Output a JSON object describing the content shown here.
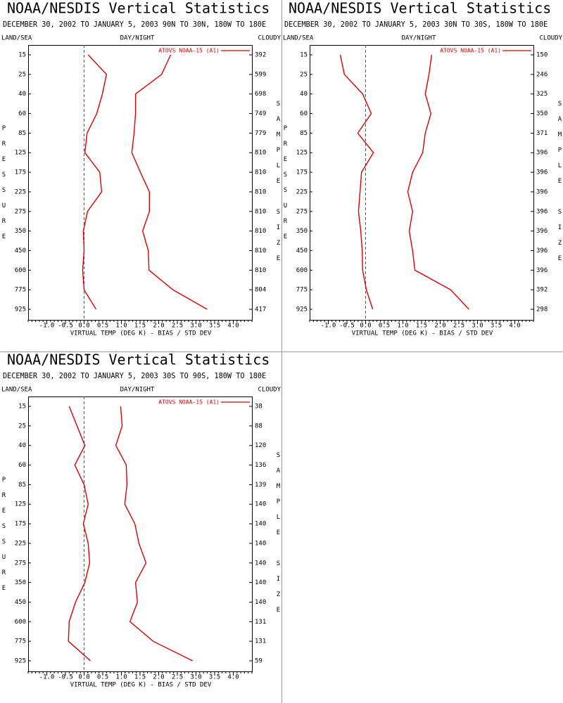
{
  "chart_data": [
    {
      "type": "line",
      "title": "NOAA/NESDIS Vertical Statistics",
      "subtitle": "DECEMBER 30, 2002 TO JANUARY 5, 2003 90N TO 30N, 180W TO 180E",
      "land_sea_label": "LAND/SEA",
      "day_night_label": "DAY/NIGHT",
      "cloudy_label": "CLOUDY",
      "y_label": "PRESSURE",
      "y2_label": "SAMPLE SIZE",
      "x_label": "VIRTUAL TEMP (DEG K) - BIAS / STD DEV",
      "categories": [
        15,
        25,
        40,
        60,
        85,
        125,
        175,
        225,
        275,
        350,
        450,
        600,
        775,
        925
      ],
      "sample_size": [
        392,
        599,
        698,
        749,
        779,
        810,
        810,
        810,
        810,
        810,
        810,
        810,
        804,
        417
      ],
      "series": [
        {
          "name": "ATOVS NOAA-15 (A1)",
          "color": "#dd0000",
          "values": [
            0.11,
            0.6,
            0.49,
            0.34,
            0.08,
            0.02,
            0.42,
            0.47,
            0.09,
            -0.02,
            0,
            -0.04,
            0,
            0.32
          ]
        },
        {
          "color": "#dd0000",
          "values": [
            2.32,
            2.08,
            1.38,
            1.38,
            1.34,
            1.28,
            1.51,
            1.75,
            1.75,
            1.57,
            1.72,
            1.74,
            2.38,
            3.3
          ]
        }
      ],
      "xlim": [
        -1.5,
        4.5
      ],
      "xticks": [
        {
          "value": -1,
          "label": "-1.0"
        },
        -0.5,
        {
          "value": 0,
          "label": "0.0"
        },
        0.5,
        {
          "value": 1,
          "label": "1.0"
        },
        1.5,
        {
          "value": 2,
          "label": "2.0"
        },
        2.5,
        {
          "value": 3,
          "label": "3.0"
        },
        3.5,
        {
          "value": 4,
          "label": "4.0"
        }
      ],
      "zero_line": true
    },
    {
      "type": "line",
      "title": "NOAA/NESDIS Vertical Statistics",
      "subtitle": "DECEMBER 30, 2002 TO JANUARY 5, 2003 30N TO 30S, 180W TO 180E",
      "land_sea_label": "LAND/SEA",
      "day_night_label": "DAY/NIGHT",
      "cloudy_label": "CLOUDY",
      "y_label": "PRESSURE",
      "y2_label": "SAMPLE SIZE",
      "x_label": "VIRTUAL TEMP (DEG K) - BIAS / STD DEV",
      "categories": [
        15,
        25,
        40,
        60,
        85,
        125,
        175,
        225,
        275,
        350,
        450,
        600,
        775,
        925
      ],
      "sample_size": [
        150,
        246,
        325,
        350,
        371,
        396,
        396,
        396,
        396,
        396,
        396,
        396,
        392,
        298
      ],
      "series": [
        {
          "name": "ATOVS NOAA-15 (A1)",
          "color": "#dd0000",
          "values": [
            -0.68,
            -0.57,
            -0.08,
            0.15,
            -0.21,
            0.21,
            -0.11,
            -0.15,
            -0.19,
            -0.13,
            -0.09,
            -0.08,
            0.02,
            0.19
          ]
        },
        {
          "color": "#dd0000",
          "values": [
            1.77,
            1.7,
            1.6,
            1.75,
            1.6,
            1.53,
            1.26,
            1.13,
            1.26,
            1.17,
            1.26,
            1.32,
            2.28,
            2.77
          ]
        }
      ],
      "xlim": [
        -1.5,
        4.5
      ],
      "xticks": [
        {
          "value": -1,
          "label": "-1.0"
        },
        -0.5,
        {
          "value": 0,
          "label": "0.0"
        },
        0.5,
        {
          "value": 1,
          "label": "1.0"
        },
        1.5,
        {
          "value": 2,
          "label": "2.0"
        },
        2.5,
        {
          "value": 3,
          "label": "3.0"
        },
        3.5,
        {
          "value": 4,
          "label": "4.0"
        }
      ],
      "zero_line": true
    },
    {
      "type": "line",
      "title": "NOAA/NESDIS Vertical Statistics",
      "subtitle": "DECEMBER 30, 2002 TO JANUARY 5, 2003 30S TO 90S, 180W TO 180E",
      "land_sea_label": "LAND/SEA",
      "day_night_label": "DAY/NIGHT",
      "cloudy_label": "CLOUDY",
      "y_label": "PRESSURE",
      "y2_label": "SAMPLE SIZE",
      "x_label": "VIRTUAL TEMP (DEG K) - BIAS / STD DEV",
      "categories": [
        15,
        25,
        40,
        60,
        85,
        125,
        175,
        225,
        275,
        350,
        450,
        600,
        775,
        925
      ],
      "sample_size": [
        38,
        88,
        120,
        136,
        139,
        140,
        140,
        140,
        140,
        140,
        140,
        131,
        131,
        59
      ],
      "series": [
        {
          "name": "ATOVS NOAA-15 (A1)",
          "color": "#dd0000",
          "values": [
            -0.4,
            -0.19,
            0.02,
            -0.25,
            0,
            0.11,
            -0.02,
            0.11,
            0.15,
            0.02,
            -0.23,
            -0.4,
            -0.42,
            0.17
          ]
        },
        {
          "color": "#dd0000",
          "values": [
            0.98,
            1.02,
            0.85,
            1.13,
            1.15,
            1.09,
            1.36,
            1.47,
            1.66,
            1.38,
            1.43,
            1.23,
            1.85,
            2.91
          ]
        }
      ],
      "xlim": [
        -1.5,
        4.5
      ],
      "xticks": [
        {
          "value": -1,
          "label": "-1.0"
        },
        -0.5,
        {
          "value": 0,
          "label": "0.0"
        },
        0.5,
        {
          "value": 1,
          "label": "1.0"
        },
        1.5,
        {
          "value": 2,
          "label": "2.0"
        },
        2.5,
        {
          "value": 3,
          "label": "3.0"
        },
        3.5,
        {
          "value": 4,
          "label": "4.0"
        }
      ],
      "zero_line": true
    }
  ]
}
